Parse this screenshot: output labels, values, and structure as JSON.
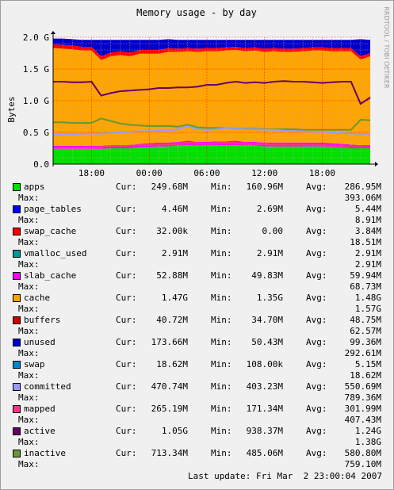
{
  "chart_data": {
    "type": "area",
    "title": "Memory usage - by day",
    "ylabel": "Bytes",
    "watermark": "RRDTOOL / TOBI OETIKER",
    "ylim": [
      0,
      2.0
    ],
    "y_unit": "G",
    "yticks": [
      "0.0",
      "0.5 G",
      "1.0 G",
      "1.5 G",
      "2.0 G"
    ],
    "xticks": [
      "18:00",
      "00:00",
      "06:00",
      "12:00",
      "18:00"
    ],
    "grid": true,
    "x": [
      "14:00",
      "15:00",
      "16:00",
      "17:00",
      "18:00",
      "19:00",
      "20:00",
      "21:00",
      "22:00",
      "23:00",
      "00:00",
      "01:00",
      "02:00",
      "03:00",
      "04:00",
      "05:00",
      "06:00",
      "07:00",
      "08:00",
      "09:00",
      "10:00",
      "11:00",
      "12:00",
      "13:00",
      "14:00",
      "15:00",
      "16:00",
      "17:00",
      "18:00",
      "19:00",
      "20:00",
      "21:00",
      "22:00",
      "23:00"
    ],
    "stacked_series": [
      {
        "name": "apps",
        "color": "#00e000",
        "values": [
          0.24,
          0.24,
          0.24,
          0.24,
          0.24,
          0.24,
          0.25,
          0.25,
          0.25,
          0.27,
          0.27,
          0.28,
          0.28,
          0.29,
          0.3,
          0.29,
          0.29,
          0.3,
          0.3,
          0.3,
          0.29,
          0.29,
          0.28,
          0.28,
          0.28,
          0.28,
          0.28,
          0.28,
          0.28,
          0.27,
          0.26,
          0.25,
          0.25,
          0.25
        ]
      },
      {
        "name": "slab_cache",
        "color": "#ff00ff",
        "values": [
          0.05,
          0.05,
          0.05,
          0.05,
          0.05,
          0.05,
          0.05,
          0.05,
          0.05,
          0.05,
          0.06,
          0.06,
          0.06,
          0.06,
          0.07,
          0.06,
          0.06,
          0.06,
          0.06,
          0.07,
          0.06,
          0.06,
          0.06,
          0.06,
          0.06,
          0.06,
          0.06,
          0.06,
          0.06,
          0.06,
          0.06,
          0.06,
          0.05,
          0.05
        ]
      },
      {
        "name": "cache",
        "color": "#ffa500",
        "values": [
          1.54,
          1.53,
          1.52,
          1.5,
          1.5,
          1.35,
          1.4,
          1.42,
          1.4,
          1.42,
          1.41,
          1.4,
          1.43,
          1.42,
          1.41,
          1.42,
          1.43,
          1.42,
          1.43,
          1.43,
          1.43,
          1.44,
          1.43,
          1.44,
          1.43,
          1.43,
          1.44,
          1.45,
          1.45,
          1.45,
          1.46,
          1.47,
          1.35,
          1.4
        ]
      },
      {
        "name": "buffers",
        "color": "#ff0000",
        "values": [
          0.06,
          0.06,
          0.06,
          0.06,
          0.06,
          0.06,
          0.06,
          0.06,
          0.06,
          0.06,
          0.06,
          0.06,
          0.06,
          0.05,
          0.05,
          0.05,
          0.05,
          0.05,
          0.05,
          0.05,
          0.05,
          0.05,
          0.05,
          0.05,
          0.05,
          0.05,
          0.05,
          0.05,
          0.05,
          0.05,
          0.05,
          0.05,
          0.05,
          0.05
        ]
      },
      {
        "name": "unused",
        "color": "#0000cc",
        "values": [
          0.09,
          0.1,
          0.1,
          0.11,
          0.11,
          0.26,
          0.2,
          0.18,
          0.2,
          0.16,
          0.16,
          0.16,
          0.14,
          0.14,
          0.13,
          0.14,
          0.13,
          0.13,
          0.12,
          0.11,
          0.13,
          0.12,
          0.14,
          0.13,
          0.14,
          0.14,
          0.13,
          0.12,
          0.12,
          0.13,
          0.13,
          0.13,
          0.27,
          0.21
        ]
      }
    ],
    "line_series": [
      {
        "name": "active",
        "color": "#660066",
        "values": [
          1.3,
          1.3,
          1.29,
          1.29,
          1.3,
          1.08,
          1.12,
          1.15,
          1.16,
          1.17,
          1.18,
          1.2,
          1.2,
          1.21,
          1.21,
          1.22,
          1.25,
          1.25,
          1.28,
          1.3,
          1.28,
          1.29,
          1.28,
          1.3,
          1.31,
          1.3,
          1.3,
          1.29,
          1.28,
          1.29,
          1.3,
          1.3,
          0.95,
          1.05
        ]
      },
      {
        "name": "inactive",
        "color": "#669933",
        "values": [
          0.66,
          0.66,
          0.65,
          0.65,
          0.65,
          0.72,
          0.68,
          0.64,
          0.62,
          0.61,
          0.6,
          0.6,
          0.6,
          0.59,
          0.62,
          0.58,
          0.57,
          0.57,
          0.57,
          0.56,
          0.56,
          0.56,
          0.55,
          0.55,
          0.55,
          0.55,
          0.54,
          0.54,
          0.54,
          0.54,
          0.54,
          0.54,
          0.7,
          0.69
        ]
      },
      {
        "name": "committed",
        "color": "#9999ff",
        "values": [
          0.46,
          0.47,
          0.47,
          0.48,
          0.48,
          0.48,
          0.49,
          0.5,
          0.51,
          0.52,
          0.52,
          0.53,
          0.53,
          0.55,
          0.6,
          0.55,
          0.54,
          0.55,
          0.57,
          0.56,
          0.55,
          0.55,
          0.54,
          0.54,
          0.53,
          0.52,
          0.52,
          0.51,
          0.51,
          0.5,
          0.49,
          0.48,
          0.48,
          0.47
        ]
      },
      {
        "name": "mapped",
        "color": "#ff3388",
        "values": [
          0.26,
          0.26,
          0.26,
          0.26,
          0.26,
          0.27,
          0.28,
          0.28,
          0.29,
          0.3,
          0.3,
          0.31,
          0.31,
          0.32,
          0.34,
          0.33,
          0.32,
          0.33,
          0.34,
          0.33,
          0.32,
          0.32,
          0.32,
          0.31,
          0.31,
          0.31,
          0.31,
          0.3,
          0.3,
          0.29,
          0.28,
          0.27,
          0.27,
          0.27
        ]
      }
    ]
  },
  "legend": {
    "cur_label": "Cur:",
    "min_label": "Min:",
    "avg_label": "Avg:",
    "max_label": "Max:",
    "items": [
      {
        "name": "apps",
        "color": "#00e000",
        "cur": "249.68M",
        "min": "160.96M",
        "avg": "286.95M",
        "max": "393.06M"
      },
      {
        "name": "page_tables",
        "color": "#0000ff",
        "cur": "4.46M",
        "min": "2.69M",
        "avg": "5.44M",
        "max": "8.91M"
      },
      {
        "name": "swap_cache",
        "color": "#ff0000",
        "cur": "32.00k",
        "min": "0.00",
        "avg": "3.84M",
        "max": "18.51M"
      },
      {
        "name": "vmalloc_used",
        "color": "#009999",
        "cur": "2.91M",
        "min": "2.91M",
        "avg": "2.91M",
        "max": "2.91M"
      },
      {
        "name": "slab_cache",
        "color": "#ff00ff",
        "cur": "52.88M",
        "min": "49.83M",
        "avg": "59.94M",
        "max": "68.73M"
      },
      {
        "name": "cache",
        "color": "#ffa500",
        "cur": "1.47G",
        "min": "1.35G",
        "avg": "1.48G",
        "max": "1.57G"
      },
      {
        "name": "buffers",
        "color": "#cc0000",
        "cur": "40.72M",
        "min": "34.70M",
        "avg": "48.75M",
        "max": "62.57M"
      },
      {
        "name": "unused",
        "color": "#0000cc",
        "cur": "173.66M",
        "min": "50.43M",
        "avg": "99.36M",
        "max": "292.61M"
      },
      {
        "name": "swap",
        "color": "#0088cc",
        "cur": "18.62M",
        "min": "108.00k",
        "avg": "5.15M",
        "max": "18.62M"
      },
      {
        "name": "committed",
        "color": "#9999ff",
        "cur": "470.74M",
        "min": "403.23M",
        "avg": "550.69M",
        "max": "789.36M"
      },
      {
        "name": "mapped",
        "color": "#ff3388",
        "cur": "265.19M",
        "min": "171.34M",
        "avg": "301.99M",
        "max": "407.43M"
      },
      {
        "name": "active",
        "color": "#660066",
        "cur": "1.05G",
        "min": "938.37M",
        "avg": "1.24G",
        "max": "1.38G"
      },
      {
        "name": "inactive",
        "color": "#669933",
        "cur": "713.34M",
        "min": "485.06M",
        "avg": "580.80M",
        "max": "759.10M"
      }
    ]
  },
  "footer": {
    "last_update": "Last update: Fri Mar  2 23:00:04 2007"
  }
}
